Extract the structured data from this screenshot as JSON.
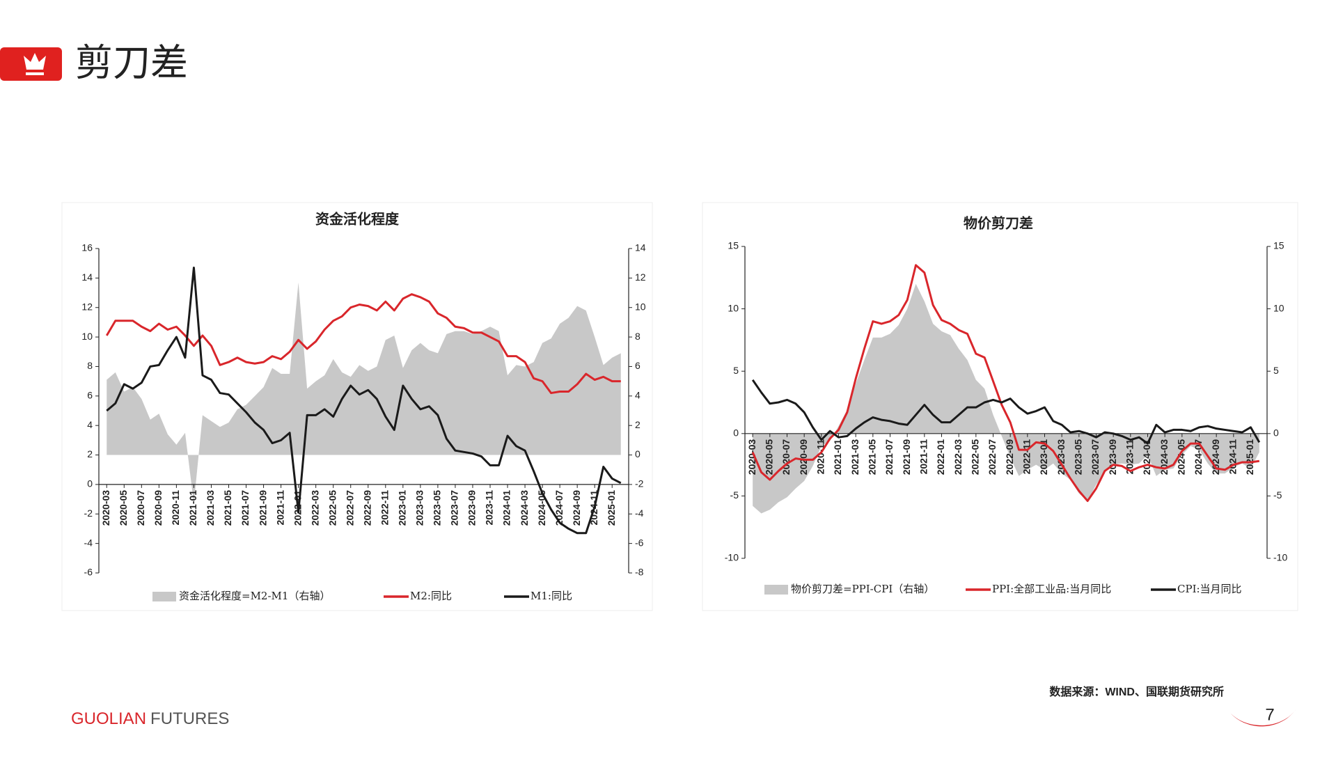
{
  "header": {
    "title": "剪刀差"
  },
  "footer": {
    "brand_primary": "GUOLIAN",
    "brand_secondary": "FUTURES",
    "source": "数据来源：WIND、国联期货研究所",
    "page_number": "7"
  },
  "chart_data": [
    {
      "type": "line",
      "title": "资金活化程度",
      "categories": [
        "2020-03",
        null,
        "2020-05",
        null,
        "2020-07",
        null,
        "2020-09",
        null,
        "2020-11",
        null,
        "2021-01",
        null,
        "2021-03",
        null,
        "2021-05",
        null,
        "2021-07",
        null,
        "2021-09",
        null,
        "2021-11",
        null,
        "2022-01",
        null,
        "2022-03",
        null,
        "2022-05",
        null,
        "2022-07",
        null,
        "2022-09",
        null,
        "2022-11",
        null,
        "2023-01",
        null,
        "2023-03",
        null,
        "2023-05",
        null,
        "2023-07",
        null,
        "2023-09",
        null,
        "2023-11",
        null,
        "2024-01",
        null,
        "2024-03",
        null,
        "2024-05",
        null,
        "2024-07",
        null,
        "2024-09",
        null,
        "2024-11",
        null,
        "2025-01",
        null
      ],
      "series": [
        {
          "name": "资金活化程度=M2-M1（右轴）",
          "type": "area",
          "axis": "y2",
          "color": "#c8c8c8",
          "values": [
            5.1,
            5.6,
            4.3,
            4.6,
            3.8,
            2.4,
            2.8,
            1.4,
            0.7,
            1.5,
            -3.3,
            2.7,
            2.3,
            1.9,
            2.2,
            3.1,
            3.4,
            4.0,
            4.6,
            5.9,
            5.5,
            5.5,
            11.7,
            4.5,
            5.0,
            5.4,
            6.5,
            5.6,
            5.3,
            6.1,
            5.7,
            6.0,
            7.8,
            8.1,
            5.9,
            7.1,
            7.6,
            7.1,
            6.9,
            8.2,
            8.4,
            8.4,
            8.2,
            8.4,
            8.7,
            8.4,
            5.4,
            6.1,
            6.0,
            6.3,
            7.6,
            7.9,
            8.9,
            9.3,
            10.1,
            9.8,
            8.0,
            6.1,
            6.6,
            6.9
          ]
        },
        {
          "name": "M2:同比",
          "type": "line",
          "color": "#d9262b",
          "values": [
            10.1,
            11.1,
            11.1,
            11.1,
            10.7,
            10.4,
            10.9,
            10.5,
            10.7,
            10.1,
            9.4,
            10.1,
            9.4,
            8.1,
            8.3,
            8.6,
            8.3,
            8.2,
            8.3,
            8.7,
            8.5,
            9.0,
            9.8,
            9.2,
            9.7,
            10.5,
            11.1,
            11.4,
            12.0,
            12.2,
            12.1,
            11.8,
            12.4,
            11.8,
            12.6,
            12.9,
            12.7,
            12.4,
            11.6,
            11.3,
            10.7,
            10.6,
            10.3,
            10.3,
            10.0,
            9.7,
            8.7,
            8.7,
            8.3,
            7.2,
            7.0,
            6.2,
            6.3,
            6.3,
            6.8,
            7.5,
            7.1,
            7.3,
            7.0,
            7.0
          ]
        },
        {
          "name": "M1:同比",
          "type": "line",
          "color": "#1a1a1a",
          "values": [
            5.0,
            5.5,
            6.8,
            6.5,
            6.9,
            8.0,
            8.1,
            9.1,
            10.0,
            8.6,
            14.7,
            7.4,
            7.1,
            6.2,
            6.1,
            5.5,
            4.9,
            4.2,
            3.7,
            2.8,
            3.0,
            3.5,
            -1.9,
            4.7,
            4.7,
            5.1,
            4.6,
            5.8,
            6.7,
            6.1,
            6.4,
            5.8,
            4.6,
            3.7,
            6.7,
            5.8,
            5.1,
            5.3,
            4.7,
            3.1,
            2.3,
            2.2,
            2.1,
            1.9,
            1.3,
            1.3,
            3.3,
            2.6,
            2.3,
            0.9,
            -0.6,
            -1.7,
            -2.6,
            -3.0,
            -3.3,
            -3.3,
            -1.5,
            1.2,
            0.4,
            0.1
          ]
        }
      ],
      "ylim": [
        -6,
        16
      ],
      "yticks": [
        -6,
        -4,
        -2,
        0,
        2,
        4,
        6,
        8,
        10,
        12,
        14,
        16
      ],
      "y2lim": [
        -8,
        14
      ],
      "y2ticks": [
        -8,
        -6,
        -4,
        -2,
        0,
        2,
        4,
        6,
        8,
        10,
        12,
        14
      ],
      "grid": false,
      "legend": "bottom"
    },
    {
      "type": "line",
      "title": "物价剪刀差",
      "categories": [
        "2020-03",
        null,
        "2020-05",
        null,
        "2020-07",
        null,
        "2020-09",
        null,
        "2020-11",
        null,
        "2021-01",
        null,
        "2021-03",
        null,
        "2021-05",
        null,
        "2021-07",
        null,
        "2021-09",
        null,
        "2021-11",
        null,
        "2022-01",
        null,
        "2022-03",
        null,
        "2022-05",
        null,
        "2022-07",
        null,
        "2022-09",
        null,
        "2022-11",
        null,
        "2023-01",
        null,
        "2023-03",
        null,
        "2023-05",
        null,
        "2023-07",
        null,
        "2023-09",
        null,
        "2023-11",
        null,
        "2024-01",
        null,
        "2024-03",
        null,
        "2024-05",
        null,
        "2024-07",
        null,
        "2024-09",
        null,
        "2024-11",
        null,
        "2025-01",
        null
      ],
      "series": [
        {
          "name": "物价剪刀差=PPI-CPI（右轴）",
          "type": "area",
          "axis": "y2",
          "color": "#c8c8c8",
          "values": [
            -5.8,
            -6.4,
            -6.1,
            -5.5,
            -5.1,
            -4.4,
            -3.8,
            -2.6,
            -1.0,
            -0.6,
            0.6,
            1.9,
            4.0,
            5.9,
            7.7,
            7.7,
            8.0,
            8.7,
            10.0,
            12.0,
            10.6,
            8.8,
            8.2,
            7.9,
            6.8,
            5.9,
            4.3,
            3.6,
            1.5,
            -0.2,
            -1.9,
            -3.4,
            -2.9,
            -2.5,
            -2.9,
            -2.4,
            -3.2,
            -3.7,
            -4.8,
            -5.4,
            -4.1,
            -3.1,
            -2.5,
            -2.4,
            -2.5,
            -2.4,
            -1.7,
            -3.4,
            -2.9,
            -2.8,
            -1.7,
            -1.0,
            -1.3,
            -2.4,
            -3.2,
            -3.2,
            -2.7,
            -2.4,
            -2.8,
            -1.5
          ]
        },
        {
          "name": "PPI:全部工业品:当月同比",
          "type": "line",
          "color": "#d9262b",
          "values": [
            -1.5,
            -3.1,
            -3.7,
            -3.0,
            -2.4,
            -2.0,
            -2.1,
            -2.1,
            -1.5,
            -0.4,
            0.3,
            1.7,
            4.4,
            6.8,
            9.0,
            8.8,
            9.0,
            9.5,
            10.7,
            13.5,
            12.9,
            10.3,
            9.1,
            8.8,
            8.3,
            8.0,
            6.4,
            6.1,
            4.2,
            2.3,
            0.9,
            -1.3,
            -1.3,
            -0.7,
            -0.8,
            -1.4,
            -2.5,
            -3.6,
            -4.6,
            -5.4,
            -4.4,
            -3.0,
            -2.5,
            -2.6,
            -3.0,
            -2.7,
            -2.5,
            -2.7,
            -2.8,
            -2.5,
            -1.4,
            -0.8,
            -0.8,
            -1.8,
            -2.8,
            -2.9,
            -2.5,
            -2.3,
            -2.3,
            -2.2
          ]
        },
        {
          "name": "CPI:当月同比",
          "type": "line",
          "color": "#1a1a1a",
          "values": [
            4.3,
            3.3,
            2.4,
            2.5,
            2.7,
            2.4,
            1.7,
            0.5,
            -0.5,
            0.2,
            -0.3,
            -0.2,
            0.4,
            0.9,
            1.3,
            1.1,
            1.0,
            0.8,
            0.7,
            1.5,
            2.3,
            1.5,
            0.9,
            0.9,
            1.5,
            2.1,
            2.1,
            2.5,
            2.7,
            2.5,
            2.8,
            2.1,
            1.6,
            1.8,
            2.1,
            1.0,
            0.7,
            0.1,
            0.2,
            0.0,
            -0.3,
            0.1,
            0.0,
            -0.2,
            -0.5,
            -0.3,
            -0.8,
            0.7,
            0.1,
            0.3,
            0.3,
            0.2,
            0.5,
            0.6,
            0.4,
            0.3,
            0.2,
            0.1,
            0.5,
            -0.7
          ]
        }
      ],
      "ylim": [
        -10,
        15
      ],
      "yticks": [
        -10,
        -5,
        0,
        5,
        10,
        15
      ],
      "y2lim": [
        -10,
        15
      ],
      "y2ticks": [
        -10,
        -5,
        0,
        5,
        10,
        15
      ],
      "grid": false,
      "legend": "bottom"
    }
  ]
}
